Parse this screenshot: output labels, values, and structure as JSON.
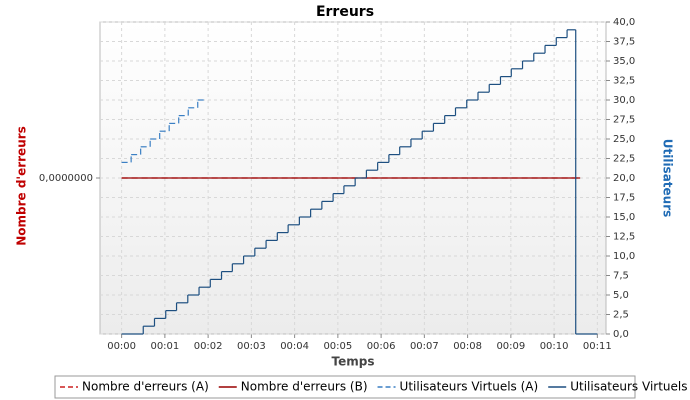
{
  "chart_data": {
    "type": "step-line",
    "title": "Erreurs",
    "xlabel": "Temps",
    "ylabel": "Nombre d'erreurs",
    "y2label": "Utilisateurs",
    "xlim": [
      -0.5,
      11.2
    ],
    "xticks": [
      {
        "value": 0,
        "label": "00:00"
      },
      {
        "value": 1,
        "label": "00:01"
      },
      {
        "value": 2,
        "label": "00:02"
      },
      {
        "value": 3,
        "label": "00:03"
      },
      {
        "value": 4,
        "label": "00:04"
      },
      {
        "value": 5,
        "label": "00:05"
      },
      {
        "value": 6,
        "label": "00:06"
      },
      {
        "value": 7,
        "label": "00:07"
      },
      {
        "value": 8,
        "label": "00:08"
      },
      {
        "value": 9,
        "label": "00:09"
      },
      {
        "value": 10,
        "label": "00:10"
      },
      {
        "value": 11,
        "label": "00:11"
      }
    ],
    "ylim": [
      -1,
      1
    ],
    "yticks": [
      {
        "value": 0,
        "label": "0,0000000"
      }
    ],
    "y2lim": [
      0,
      40
    ],
    "y2ticks": [
      {
        "value": 0,
        "label": "0,0"
      },
      {
        "value": 2.5,
        "label": "2,5"
      },
      {
        "value": 5,
        "label": "5,0"
      },
      {
        "value": 7.5,
        "label": "7,5"
      },
      {
        "value": 10,
        "label": "10,0"
      },
      {
        "value": 12.5,
        "label": "12,5"
      },
      {
        "value": 15,
        "label": "15,0"
      },
      {
        "value": 17.5,
        "label": "17,5"
      },
      {
        "value": 20,
        "label": "20,0"
      },
      {
        "value": 22.5,
        "label": "22,5"
      },
      {
        "value": 25,
        "label": "25,0"
      },
      {
        "value": 27.5,
        "label": "27,5"
      },
      {
        "value": 30,
        "label": "30,0"
      },
      {
        "value": 32.5,
        "label": "32,5"
      },
      {
        "value": 35,
        "label": "35,0"
      },
      {
        "value": 37.5,
        "label": "37,5"
      },
      {
        "value": 40,
        "label": "40,0"
      }
    ],
    "grid": true,
    "legend": "bottom",
    "series": [
      {
        "name": "Nombre d'erreurs (A)",
        "color": "#cc2020",
        "dashed": true,
        "x": [
          0,
          10.6
        ],
        "values": [
          0,
          0
        ]
      },
      {
        "name": "Nombre d'erreurs (B)",
        "color": "#990000",
        "dashed": false,
        "x": [
          0,
          10.6
        ],
        "values": [
          0,
          0
        ]
      },
      {
        "name": "Utilisateurs Virtuels (A)",
        "color": "#3a7fc4",
        "dashed": true,
        "axis": "y2",
        "x": [
          0,
          0.22,
          0.44,
          0.66,
          0.88,
          1.1,
          1.32,
          1.54,
          1.76,
          1.92
        ],
        "values": [
          22,
          23,
          24,
          25,
          26,
          27,
          28,
          29,
          30,
          30
        ]
      },
      {
        "name": "Utilisateurs Virtuels (B)",
        "color": "#1d4f80",
        "dashed": false,
        "axis": "y2",
        "x": [
          0,
          0.5,
          0.76,
          1.02,
          1.27,
          1.53,
          1.79,
          2.05,
          2.31,
          2.56,
          2.82,
          3.08,
          3.34,
          3.6,
          3.85,
          4.11,
          4.37,
          4.63,
          4.89,
          5.14,
          5.4,
          5.66,
          5.92,
          6.18,
          6.43,
          6.69,
          6.95,
          7.21,
          7.47,
          7.72,
          7.98,
          8.24,
          8.5,
          8.76,
          9.01,
          9.27,
          9.53,
          9.79,
          10.05,
          10.3,
          10.5,
          11
        ],
        "values": [
          0,
          1,
          2,
          3,
          4,
          5,
          6,
          7,
          8,
          9,
          10,
          11,
          12,
          13,
          14,
          15,
          16,
          17,
          18,
          19,
          20,
          21,
          22,
          23,
          24,
          25,
          26,
          27,
          28,
          29,
          30,
          31,
          32,
          33,
          34,
          35,
          36,
          37,
          38,
          39,
          0,
          0
        ]
      }
    ]
  }
}
